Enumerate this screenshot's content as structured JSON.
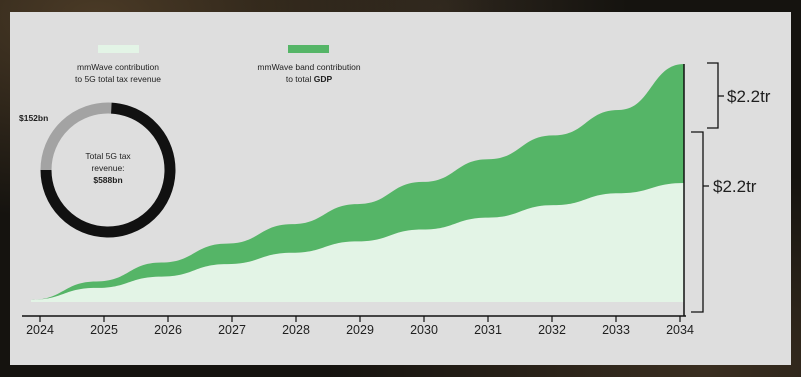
{
  "colors": {
    "background": "#dedede",
    "tax_area": "#e3f4e6",
    "gdp_band": "#55b567",
    "axis": "#111111",
    "donut_dark": "#111111",
    "donut_light": "#a3a3a3"
  },
  "legend": {
    "tax": {
      "line1": "mmWave contribution",
      "line2": "to 5G total tax revenue"
    },
    "gdp": {
      "line1": "mmWave band contribution",
      "line2_prefix": "to total ",
      "line2_bold": "GDP"
    }
  },
  "donut": {
    "callout_label": "$152bn",
    "center_line1": "Total 5G tax",
    "center_line2": "revenue:",
    "center_value": "$588bn",
    "total": 588,
    "mmwave_part": 152
  },
  "brackets": {
    "upper_label": "$2.2tr",
    "lower_label": "$2.2tr"
  },
  "chart_data": {
    "type": "area",
    "x": [
      "2024",
      "2025",
      "2026",
      "2027",
      "2028",
      "2029",
      "2030",
      "2031",
      "2032",
      "2033",
      "2034"
    ],
    "series": [
      {
        "name": "mmWave contribution to 5G total tax revenue",
        "role": "lower area",
        "values": [
          0.04,
          0.26,
          0.47,
          0.7,
          0.91,
          1.12,
          1.34,
          1.56,
          1.79,
          2.01,
          2.2
        ]
      },
      {
        "name": "mmWave band contribution to total GDP",
        "role": "stacked band top",
        "values": [
          0.04,
          0.38,
          0.73,
          1.08,
          1.44,
          1.81,
          2.22,
          2.64,
          3.08,
          3.55,
          4.4
        ]
      }
    ],
    "ylim": [
      0,
      4.4
    ],
    "grid": false,
    "legend_position": "top-left"
  }
}
